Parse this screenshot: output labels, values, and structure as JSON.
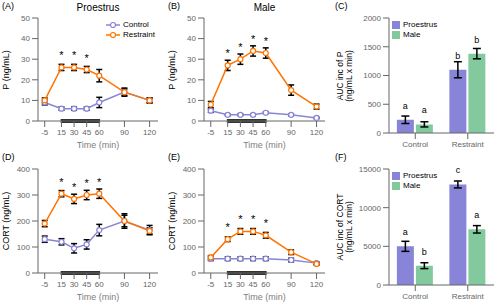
{
  "chart_data": [
    {
      "type": "line",
      "panel_label": "(A)",
      "title": "Proestrus",
      "x_label": "Time (min)",
      "y_label": "P (ng/mL)",
      "x": [
        -5,
        15,
        30,
        45,
        60,
        90,
        120
      ],
      "xlim": [
        -13,
        130
      ],
      "xticks": [
        -5,
        15,
        30,
        45,
        60,
        90,
        120
      ],
      "ylim": [
        0,
        50
      ],
      "yticks": [
        0,
        10,
        20,
        30,
        40,
        50
      ],
      "grid": false,
      "legend": "upper right",
      "period": {
        "x": [
          14,
          61
        ],
        "color": "#333333"
      },
      "series": [
        {
          "name": "Control",
          "color": "#8884d8",
          "marker": "circle",
          "values": [
            9,
            6,
            6,
            6,
            9,
            14,
            10
          ],
          "errors": [
            1.2,
            0.8,
            0.8,
            0.8,
            2.5,
            2,
            1.2
          ]
        },
        {
          "name": "Restraint",
          "color": "#ff7300",
          "marker": "circle",
          "values": [
            10,
            26,
            26,
            25,
            22,
            14,
            10
          ],
          "errors": [
            1.2,
            1.5,
            1.5,
            1.5,
            3,
            1.5,
            1.2
          ]
        }
      ],
      "annotations": [
        {
          "text": "*",
          "x": 15,
          "series": "Restraint"
        },
        {
          "text": "*",
          "x": 30,
          "series": "Restraint"
        },
        {
          "text": "*",
          "x": 45,
          "series": "Restraint"
        }
      ]
    },
    {
      "type": "line",
      "panel_label": "(B)",
      "title": "Male",
      "x_label": "Time (min)",
      "y_label": "P (ng/mL)",
      "x": [
        -5,
        15,
        30,
        45,
        60,
        90,
        120
      ],
      "xlim": [
        -13,
        130
      ],
      "xticks": [
        -5,
        15,
        30,
        45,
        60,
        90,
        120
      ],
      "ylim": [
        0,
        50
      ],
      "yticks": [
        0,
        10,
        20,
        30,
        40,
        50
      ],
      "grid": false,
      "period": {
        "x": [
          14,
          61
        ],
        "color": "#333333"
      },
      "series": [
        {
          "name": "Control",
          "color": "#8884d8",
          "marker": "circle",
          "values": [
            5,
            3,
            3,
            3,
            4,
            3,
            1.5
          ],
          "errors": [
            0.8,
            0.4,
            0.4,
            0.4,
            0.4,
            0.4,
            0.3
          ]
        },
        {
          "name": "Restraint",
          "color": "#ff7300",
          "marker": "circle",
          "values": [
            8,
            27,
            30,
            34,
            33,
            15,
            7
          ],
          "errors": [
            1.5,
            2.5,
            2.5,
            2.5,
            2.5,
            2.5,
            1.2
          ]
        }
      ],
      "annotations": [
        {
          "text": "*",
          "x": 15,
          "series": "Restraint"
        },
        {
          "text": "*",
          "x": 30,
          "series": "Restraint"
        },
        {
          "text": "*",
          "x": 45,
          "series": "Restraint"
        },
        {
          "text": "*",
          "x": 60,
          "series": "Restraint"
        }
      ]
    },
    {
      "type": "bar",
      "panel_label": "(C)",
      "y_label": "AUC inc of P\n(ng/mL x min)",
      "categories": [
        "Control",
        "Restraint"
      ],
      "ylim": [
        0,
        2000
      ],
      "yticks": [
        0,
        500,
        1000,
        1500,
        2000
      ],
      "grid": false,
      "legend": "upper left",
      "series": [
        {
          "name": "Proestrus",
          "color": "#8884d8",
          "values": [
            230,
            1100
          ],
          "errors": [
            65,
            140
          ],
          "annotations": [
            "a",
            "b"
          ]
        },
        {
          "name": "Male",
          "color": "#82ca9d",
          "values": [
            150,
            1380
          ],
          "errors": [
            45,
            90
          ],
          "annotations": [
            "a",
            "b"
          ]
        }
      ]
    },
    {
      "type": "line",
      "panel_label": "(D)",
      "x_label": "Time (min)",
      "y_label": "CORT (ng/mL)",
      "x": [
        -5,
        15,
        30,
        45,
        60,
        90,
        120
      ],
      "xlim": [
        -13,
        130
      ],
      "xticks": [
        -5,
        15,
        30,
        45,
        60,
        90,
        120
      ],
      "ylim": [
        0,
        400
      ],
      "yticks": [
        0,
        100,
        200,
        300,
        400
      ],
      "grid": false,
      "period": {
        "x": [
          14,
          61
        ],
        "color": "#333333"
      },
      "series": [
        {
          "name": "Control",
          "color": "#8884d8",
          "marker": "circle",
          "values": [
            130,
            120,
            95,
            110,
            165,
            200,
            165
          ],
          "errors": [
            12,
            12,
            18,
            18,
            22,
            28,
            18
          ]
        },
        {
          "name": "Restraint",
          "color": "#ff7300",
          "marker": "circle",
          "values": [
            190,
            305,
            285,
            300,
            305,
            200,
            162
          ],
          "errors": [
            12,
            12,
            18,
            18,
            18,
            22,
            12
          ]
        }
      ],
      "annotations": [
        {
          "text": "*",
          "x": 15,
          "series": "Restraint"
        },
        {
          "text": "*",
          "x": 30,
          "series": "Restraint"
        },
        {
          "text": "*",
          "x": 45,
          "series": "Restraint"
        },
        {
          "text": "*",
          "x": 60,
          "series": "Restraint"
        }
      ]
    },
    {
      "type": "line",
      "panel_label": "(E)",
      "x_label": "Time (min)",
      "y_label": "CORT (ng/mL)",
      "x": [
        -5,
        15,
        30,
        45,
        60,
        90,
        120
      ],
      "xlim": [
        -13,
        130
      ],
      "xticks": [
        -5,
        15,
        30,
        45,
        60,
        90,
        120
      ],
      "ylim": [
        0,
        400
      ],
      "yticks": [
        0,
        100,
        200,
        300,
        400
      ],
      "grid": false,
      "period": {
        "x": [
          14,
          61
        ],
        "color": "#333333"
      },
      "series": [
        {
          "name": "Control",
          "color": "#8884d8",
          "marker": "circle",
          "values": [
            55,
            55,
            55,
            55,
            55,
            50,
            38
          ],
          "errors": [
            7,
            7,
            7,
            7,
            7,
            7,
            5
          ]
        },
        {
          "name": "Restraint",
          "color": "#ff7300",
          "marker": "circle",
          "values": [
            60,
            130,
            160,
            160,
            145,
            80,
            35
          ],
          "errors": [
            7,
            9,
            11,
            11,
            11,
            9,
            4
          ]
        }
      ],
      "annotations": [
        {
          "text": "*",
          "x": 15,
          "series": "Restraint"
        },
        {
          "text": "*",
          "x": 30,
          "series": "Restraint"
        },
        {
          "text": "*",
          "x": 45,
          "series": "Restraint"
        },
        {
          "text": "*",
          "x": 60,
          "series": "Restraint"
        }
      ]
    },
    {
      "type": "bar",
      "panel_label": "(F)",
      "y_label": "AUC inc of CORT\n(ng/mL x min)",
      "categories": [
        "Control",
        "Restraint"
      ],
      "ylim": [
        0,
        15000
      ],
      "yticks": [
        0,
        5000,
        10000,
        15000
      ],
      "grid": false,
      "legend": "upper left",
      "series": [
        {
          "name": "Proestrus",
          "color": "#8884d8",
          "values": [
            5000,
            13000
          ],
          "errors": [
            650,
            450
          ],
          "annotations": [
            "a",
            "c"
          ]
        },
        {
          "name": "Male",
          "color": "#82ca9d",
          "values": [
            2500,
            7200
          ],
          "errors": [
            380,
            480
          ],
          "annotations": [
            "b",
            "a"
          ]
        }
      ]
    }
  ]
}
